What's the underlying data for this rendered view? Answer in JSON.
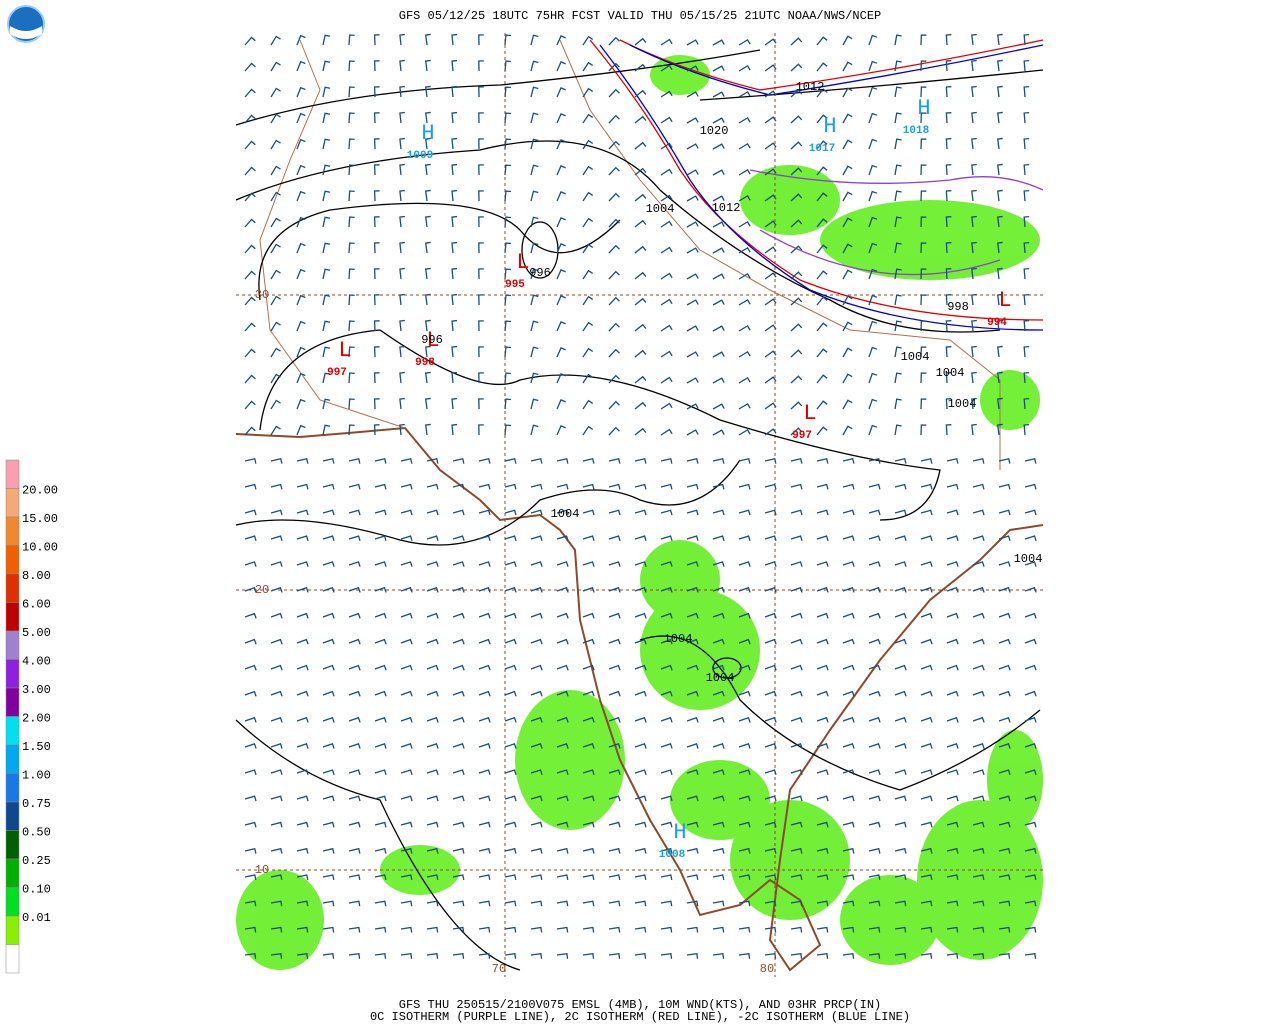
{
  "header": {
    "title": "GFS 05/12/25 18UTC 75HR FCST VALID THU 05/15/25 21UTC NOAA/NWS/NCEP"
  },
  "legend": {
    "labels": [
      "20.00",
      "15.00",
      "10.00",
      "8.00",
      "6.00",
      "5.00",
      "4.00",
      "3.00",
      "2.00",
      "1.50",
      "1.00",
      "0.75",
      "0.50",
      "0.25",
      "0.10",
      "0.01"
    ]
  },
  "map": {
    "grid_labels": [
      "30",
      "20",
      "10",
      "70",
      "80"
    ],
    "pressure_centers": [
      {
        "symbol": "H",
        "value": "1009"
      },
      {
        "symbol": "H",
        "value": "1017"
      },
      {
        "symbol": "H",
        "value": "1018"
      },
      {
        "symbol": "H",
        "value": "1008"
      },
      {
        "symbol": "L",
        "value": "995"
      },
      {
        "symbol": "L",
        "value": "997"
      },
      {
        "symbol": "L",
        "value": "998"
      },
      {
        "symbol": "L",
        "value": "997"
      },
      {
        "symbol": "L",
        "value": "994"
      }
    ],
    "isobar_labels": [
      "1012",
      "1020",
      "1004",
      "1012",
      "996",
      "996",
      "998",
      "1004",
      "1004",
      "1004",
      "1004",
      "1004",
      "1004",
      "1004"
    ]
  },
  "footer": {
    "lines": [
      "GFS THU 250515/2100V075 EMSL (4MB), 10M WND(KTS), AND 03HR PRCP(IN)",
      "0C ISOTHERM (PURPLE LINE), 2C ISOTHERM (RED LINE), -2C ISOTHERM (BLUE LINE)"
    ]
  }
}
